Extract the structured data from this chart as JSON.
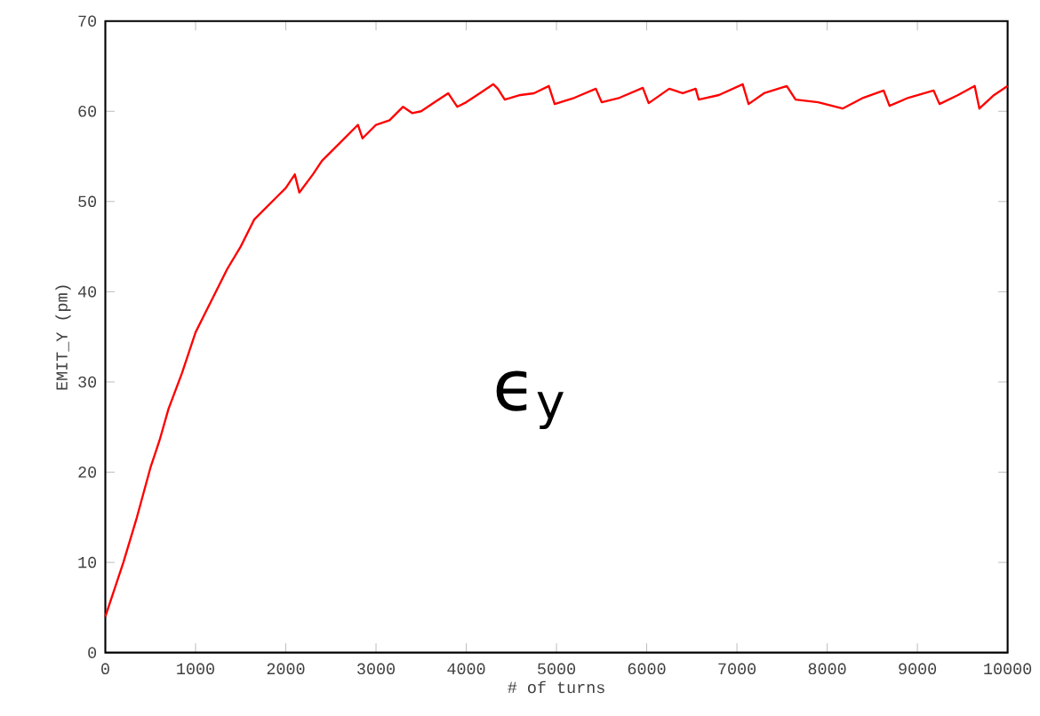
{
  "chart_data": {
    "type": "line",
    "xlabel": "# of turns",
    "ylabel": "EMIT_Y (pm)",
    "annotations": [
      "ϵ$_{y}$"
    ],
    "xlim": [
      0,
      10000
    ],
    "ylim": [
      0,
      70
    ],
    "xticks": [
      0,
      1000,
      2000,
      3000,
      4000,
      5000,
      6000,
      7000,
      8000,
      9000,
      10000
    ],
    "yticks": [
      0,
      10,
      20,
      30,
      40,
      50,
      60,
      70
    ],
    "marker": "none",
    "line_style": "solid",
    "series": [
      {
        "color": "#ff0000",
        "x": [
          0,
          100,
          200,
          350,
          500,
          600,
          700,
          850,
          1000,
          1100,
          1200,
          1350,
          1500,
          1650,
          1800,
          1900,
          2000,
          2100,
          2150,
          2300,
          2400,
          2500,
          2600,
          2800,
          2850,
          3000,
          3150,
          3300,
          3400,
          3500,
          3650,
          3800,
          3900,
          4000,
          4150,
          4300,
          4350,
          4427,
          4600,
          4750,
          4915,
          4980,
          5200,
          5436,
          5501,
          5700,
          5957,
          6022,
          6250,
          6400,
          6543,
          6576,
          6800,
          7064,
          7129,
          7300,
          7552,
          7650,
          7900,
          8171,
          8400,
          8626,
          8691,
          8900,
          9180,
          9245,
          9450,
          9635,
          9687,
          9850,
          10000
        ],
        "values": [
          4,
          7,
          10,
          15,
          20.5,
          23.5,
          27,
          31,
          35.5,
          37.5,
          39.5,
          42.5,
          45,
          48,
          49.5,
          50.5,
          51.5,
          53,
          51,
          53,
          54.5,
          55.5,
          56.5,
          58.5,
          57,
          58.5,
          59,
          60.5,
          59.8,
          60,
          61,
          62,
          60.5,
          61,
          62,
          63,
          62.5,
          61.3,
          61.8,
          62,
          62.8,
          60.8,
          61.5,
          62.5,
          61,
          61.5,
          62.6,
          60.9,
          62.5,
          62,
          62.5,
          61.3,
          61.8,
          63,
          60.8,
          62,
          62.8,
          61.3,
          61,
          60.3,
          61.5,
          62.3,
          60.6,
          61.5,
          62.3,
          60.8,
          61.8,
          62.8,
          60.3,
          61.8,
          62.8
        ]
      }
    ]
  }
}
